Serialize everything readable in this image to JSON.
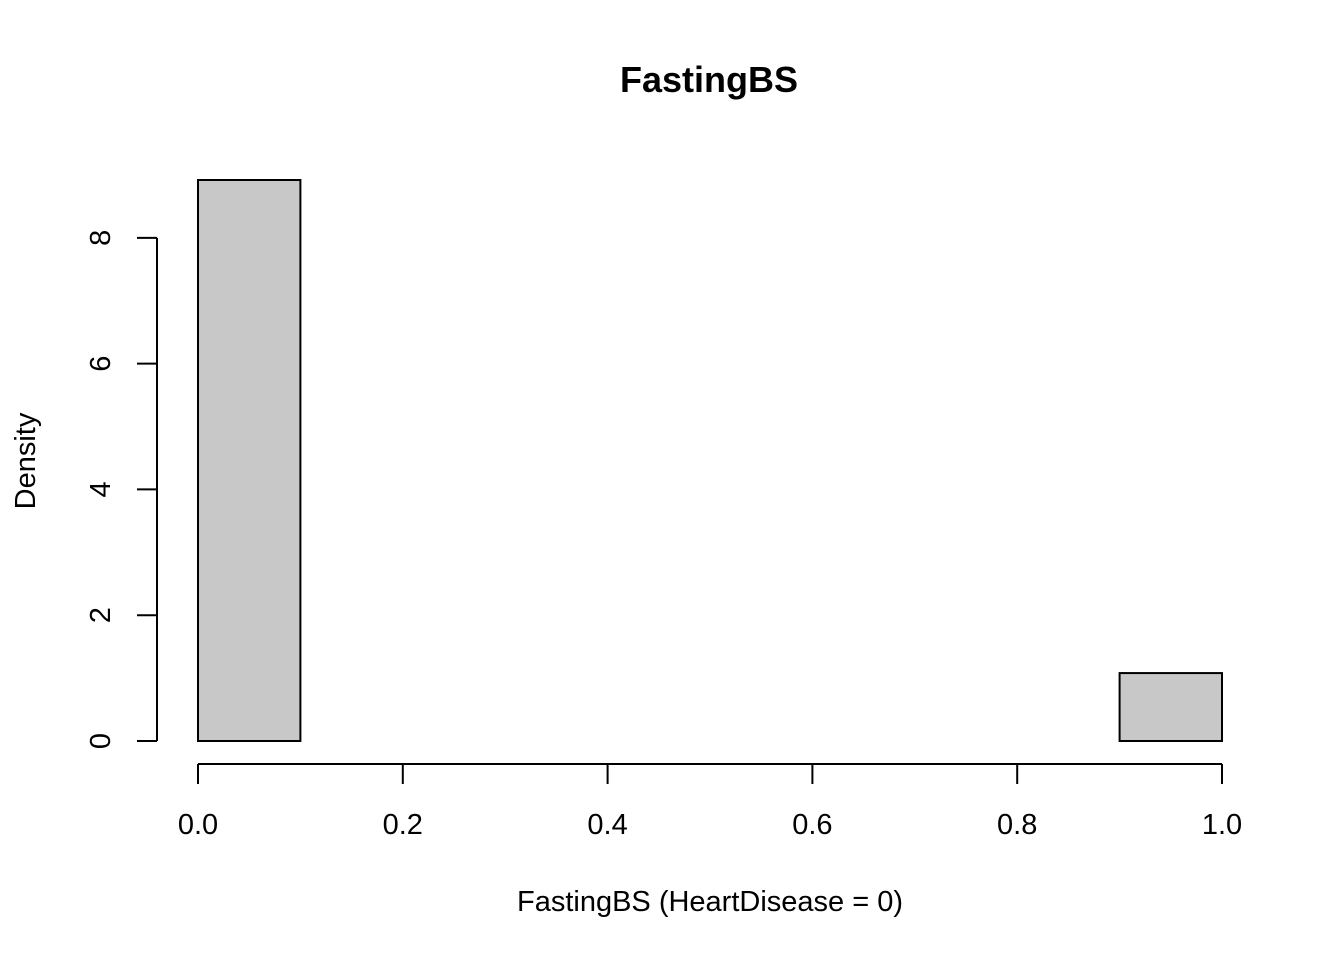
{
  "chart_data": {
    "type": "bar",
    "title": "FastingBS",
    "xlabel": "FastingBS (HeartDisease = 0)",
    "ylabel": "Density",
    "bins": [
      {
        "x0": 0.0,
        "x1": 0.1,
        "density": 8.92
      },
      {
        "x0": 0.1,
        "x1": 0.2,
        "density": 0
      },
      {
        "x0": 0.2,
        "x1": 0.3,
        "density": 0
      },
      {
        "x0": 0.3,
        "x1": 0.4,
        "density": 0
      },
      {
        "x0": 0.4,
        "x1": 0.5,
        "density": 0
      },
      {
        "x0": 0.5,
        "x1": 0.6,
        "density": 0
      },
      {
        "x0": 0.6,
        "x1": 0.7,
        "density": 0
      },
      {
        "x0": 0.7,
        "x1": 0.8,
        "density": 0
      },
      {
        "x0": 0.8,
        "x1": 0.9,
        "density": 0
      },
      {
        "x0": 0.9,
        "x1": 1.0,
        "density": 1.08
      }
    ],
    "xlim": [
      0,
      1
    ],
    "ylim": [
      0,
      8.92
    ],
    "x_ticks": [
      "0.0",
      "0.2",
      "0.4",
      "0.6",
      "0.8",
      "1.0"
    ],
    "y_ticks": [
      "0",
      "2",
      "4",
      "6",
      "8"
    ],
    "bar_fill": "#c8c8c8",
    "grid": false
  }
}
